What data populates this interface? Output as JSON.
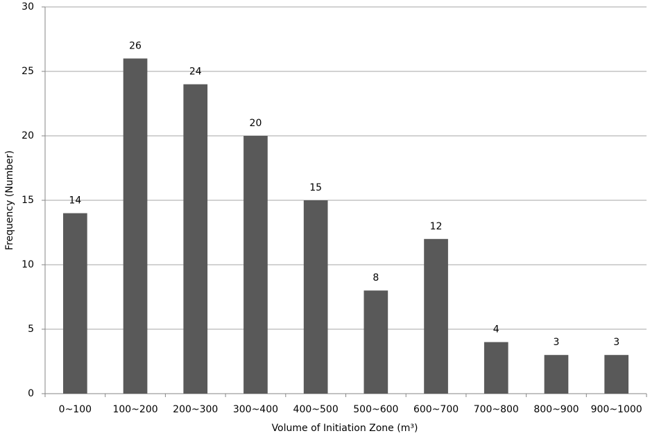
{
  "chart_data": {
    "type": "bar",
    "x_label": "Volume of Initiation Zone (m³)",
    "y_label": "Frequency (Number)",
    "categories": [
      "0~100",
      "100~200",
      "200~300",
      "300~400",
      "400~500",
      "500~600",
      "600~700",
      "700~800",
      "800~900",
      "900~1000"
    ],
    "values": [
      14,
      26,
      24,
      20,
      15,
      8,
      12,
      4,
      3,
      3
    ],
    "color": "#595959",
    "ylim": [
      0,
      30
    ],
    "yticks": [
      0,
      5,
      10,
      15,
      20,
      25,
      30
    ],
    "grid": true
  }
}
